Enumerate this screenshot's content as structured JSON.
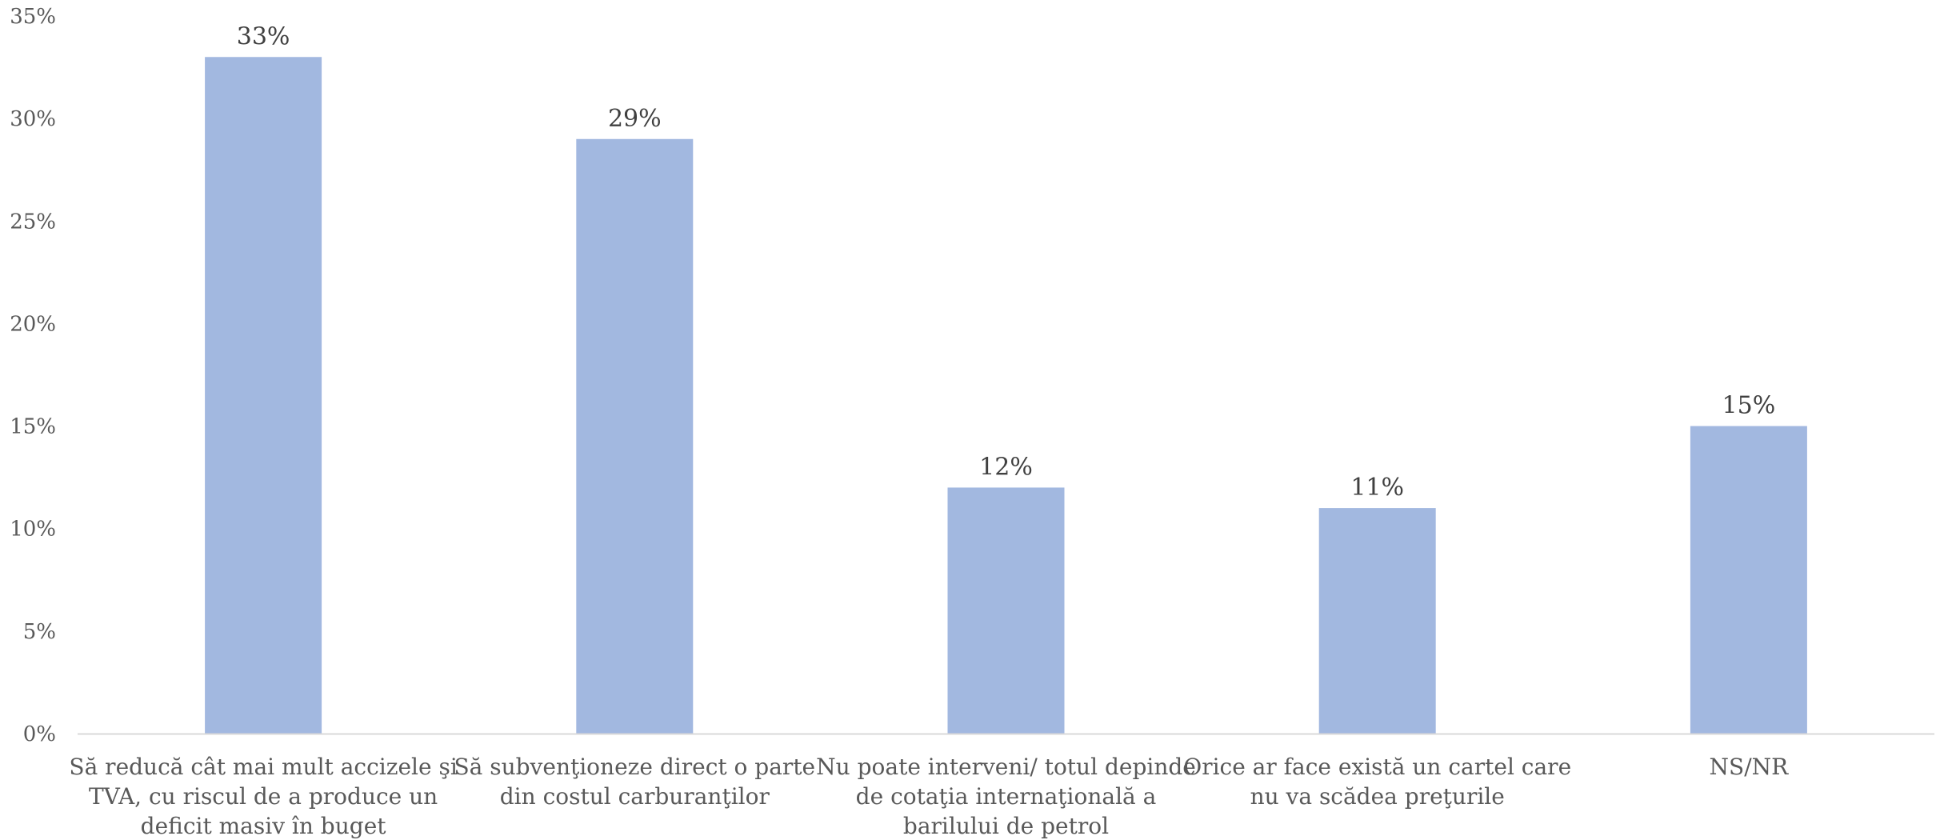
{
  "chart_data": {
    "type": "bar",
    "categories": [
      [
        "Să reducă cât mai mult accizele şi",
        "TVA, cu riscul de a produce un",
        "deficit masiv în buget"
      ],
      [
        "Să subvenţioneze direct o parte",
        "din costul carburanţilor"
      ],
      [
        "Nu poate interveni/ totul depinde",
        "de cotaţia internaţională a",
        "barilului de petrol"
      ],
      [
        "Orice ar face există un cartel care",
        "nu va scădea preţurile"
      ],
      [
        "NS/NR"
      ]
    ],
    "values": [
      33,
      29,
      12,
      11,
      15
    ],
    "data_labels": [
      "33%",
      "29%",
      "12%",
      "11%",
      "15%"
    ],
    "title": "",
    "xlabel": "",
    "ylabel": "",
    "ylim": [
      0,
      35
    ],
    "y_ticks": [
      0,
      5,
      10,
      15,
      20,
      25,
      30,
      35
    ],
    "y_tick_labels": [
      "0%",
      "5%",
      "10%",
      "15%",
      "20%",
      "25%",
      "30%",
      "35%"
    ],
    "grid": false,
    "legend": "none",
    "colors": {
      "bar": "#a2b8e0",
      "axis": "#d9d9d9",
      "tick_text": "#595959",
      "label_text": "#404040"
    }
  }
}
